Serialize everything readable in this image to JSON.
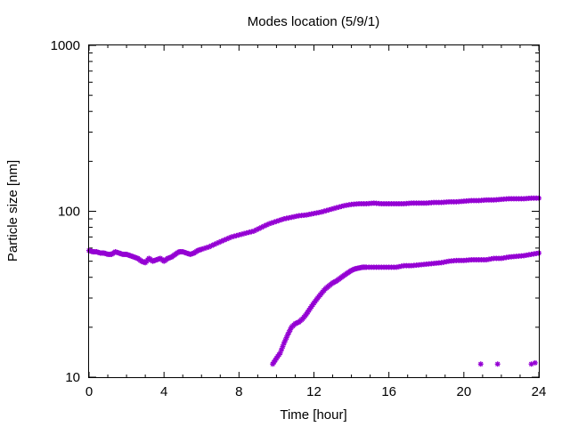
{
  "chart_data": {
    "type": "scatter",
    "title": "Modes location (5/9/1)",
    "xlabel": "Time [hour]",
    "ylabel": "Particle size [nm]",
    "xlim": [
      0,
      24
    ],
    "ylim": [
      10,
      1000
    ],
    "yscale": "log",
    "grid": false,
    "legend": "none",
    "marker_color": "#9400d3",
    "x_ticks": [
      0,
      4,
      8,
      12,
      16,
      20,
      24
    ],
    "x_tick_labels": [
      "0",
      "4",
      "8",
      "12",
      "16",
      "20",
      "24"
    ],
    "y_ticks": [
      10,
      100,
      1000
    ],
    "y_tick_labels": [
      "10",
      "100",
      "1000"
    ],
    "series": [
      {
        "x": [
          0.0,
          0.2,
          0.4,
          0.6,
          0.8,
          1.0,
          1.2,
          1.4,
          1.6,
          1.8,
          2.0,
          2.2,
          2.4,
          2.6,
          2.8,
          3.0,
          3.2,
          3.4,
          3.6,
          3.8,
          4.0,
          4.2,
          4.4,
          4.6,
          4.8,
          5.0,
          5.2,
          5.4,
          5.6,
          5.8,
          6.0,
          6.4,
          6.8,
          7.2,
          7.6,
          8.0,
          8.4,
          8.8,
          9.2,
          9.6,
          10.0,
          10.4,
          10.8,
          11.2,
          11.6,
          12.0,
          12.4,
          12.8,
          13.2,
          13.6,
          14.0,
          14.4,
          14.8,
          15.2,
          15.6,
          16.0,
          16.4,
          16.8,
          17.2,
          17.6,
          18.0,
          18.4,
          18.8,
          19.2,
          19.6,
          20.0,
          20.4,
          20.8,
          21.2,
          21.6,
          22.0,
          22.4,
          22.8,
          23.2,
          23.6,
          24.0
        ],
        "y": [
          58,
          57,
          57,
          56,
          56,
          55,
          55,
          57,
          56,
          55,
          55,
          54,
          53,
          52,
          50,
          49,
          52,
          50,
          51,
          52,
          50,
          52,
          53,
          55,
          57,
          57,
          56,
          55,
          56,
          58,
          59,
          61,
          64,
          67,
          70,
          72,
          74,
          76,
          80,
          84,
          87,
          90,
          92,
          94,
          95,
          97,
          99,
          102,
          105,
          108,
          110,
          111,
          111,
          112,
          111,
          111,
          111,
          111,
          112,
          112,
          112,
          113,
          113,
          114,
          114,
          115,
          116,
          116,
          117,
          117,
          118,
          119,
          119,
          119,
          120,
          120
        ]
      },
      {
        "x": [
          9.8,
          10.0,
          10.2,
          10.4,
          10.6,
          10.8,
          11.0,
          11.2,
          11.4,
          11.6,
          11.8,
          12.0,
          12.2,
          12.4,
          12.6,
          12.8,
          13.0,
          13.2,
          13.4,
          13.6,
          13.8,
          14.0,
          14.2,
          14.4,
          14.6,
          14.8,
          15.2,
          15.6,
          16.0,
          16.4,
          16.8,
          17.2,
          17.6,
          18.0,
          18.4,
          18.8,
          19.2,
          19.6,
          20.0,
          20.4,
          20.8,
          21.2,
          21.6,
          22.0,
          22.4,
          22.8,
          23.2,
          23.6,
          24.0
        ],
        "y": [
          12,
          13,
          14,
          16,
          18,
          20,
          21,
          21.5,
          22.5,
          24,
          26,
          28,
          30,
          32,
          34,
          35.5,
          37,
          38,
          39.5,
          41,
          42.5,
          44,
          45,
          45.5,
          46,
          46,
          46,
          46,
          46,
          46,
          47,
          47,
          47.5,
          48,
          48.5,
          49,
          50,
          50.5,
          50.5,
          51,
          51,
          51,
          52,
          52,
          53,
          53.5,
          54,
          55,
          56
        ]
      },
      {
        "x": [
          20.9,
          21.8,
          23.6,
          23.8
        ],
        "y": [
          12,
          12,
          12,
          12.2
        ]
      }
    ]
  }
}
